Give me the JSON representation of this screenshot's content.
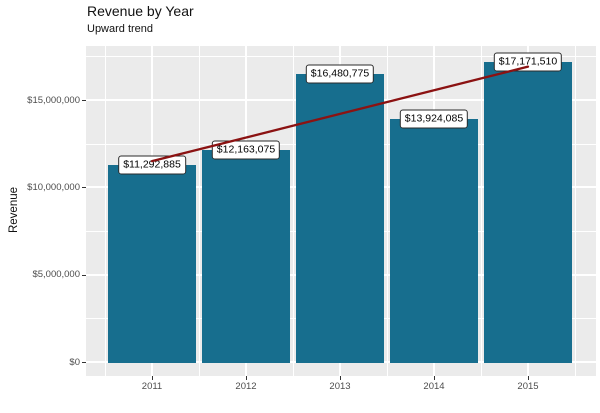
{
  "header": {
    "title": "Revenue by Year",
    "subtitle": "Upward trend"
  },
  "chart_data": {
    "type": "bar",
    "title": "Revenue by Year",
    "subtitle": "Upward trend",
    "xlabel": "",
    "ylabel": "Revenue",
    "categories": [
      "2011",
      "2012",
      "2013",
      "2014",
      "2015"
    ],
    "values": [
      11292885,
      12163075,
      16480775,
      13924085,
      17171510
    ],
    "bar_value_labels": [
      "$11,292,885",
      "$12,163,075",
      "$16,480,775",
      "$13,924,085",
      "$17,171,510"
    ],
    "y_ticks": [
      {
        "value": 0,
        "label": "$0"
      },
      {
        "value": 5000000,
        "label": "$5,000,000"
      },
      {
        "value": 10000000,
        "label": "$10,000,000"
      },
      {
        "value": 15000000,
        "label": "$15,000,000"
      }
    ],
    "y_minor_ticks": [
      2500000,
      7500000,
      12500000,
      17500000
    ],
    "ylim": [
      0,
      18090000
    ],
    "grid": true,
    "legend": "none",
    "trend_line": {
      "type": "linear-regression",
      "from_value": 11500000,
      "to_value": 16910000,
      "color": "#8B1212"
    },
    "bar_color": "#176E8E",
    "panel_background": "#EBEBEB",
    "gridline_color": "#FFFFFF",
    "axis_text_color": "#4D4D4D"
  }
}
